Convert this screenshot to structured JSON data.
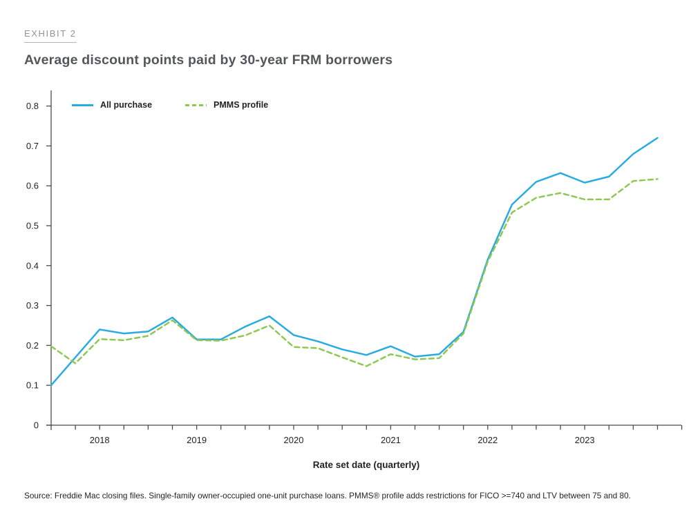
{
  "header": {
    "exhibit_label": "EXHIBIT 2",
    "title": "Average discount points paid by 30-year FRM borrowers"
  },
  "chart_data": {
    "type": "line",
    "title": "Average discount points paid by 30-year FRM borrowers",
    "xlabel": "Rate set date (quarterly)",
    "ylabel": "",
    "ylim": [
      0,
      0.8
    ],
    "y_ticks": [
      "0",
      "0.1",
      "0.2",
      "0.3",
      "0.4",
      "0.5",
      "0.6",
      "0.7",
      "0.8"
    ],
    "grid": false,
    "legend_position": "top-left",
    "x": [
      "2017 Q3",
      "2017 Q4",
      "2018 Q1",
      "2018 Q2",
      "2018 Q3",
      "2018 Q4",
      "2019 Q1",
      "2019 Q2",
      "2019 Q3",
      "2019 Q4",
      "2020 Q1",
      "2020 Q2",
      "2020 Q3",
      "2020 Q4",
      "2021 Q1",
      "2021 Q2",
      "2021 Q3",
      "2021 Q4",
      "2022 Q1",
      "2022 Q2",
      "2022 Q3",
      "2022 Q4",
      "2023 Q1",
      "2023 Q2",
      "2023 Q3",
      "2023 Q4"
    ],
    "x_year_labels": [
      {
        "label": "2018",
        "index": 2
      },
      {
        "label": "2019",
        "index": 6
      },
      {
        "label": "2020",
        "index": 10
      },
      {
        "label": "2021",
        "index": 14
      },
      {
        "label": "2022",
        "index": 18
      },
      {
        "label": "2023",
        "index": 22
      }
    ],
    "series": [
      {
        "name": "All purchase",
        "style": "solid",
        "color": "#29abe2",
        "values": [
          0.1,
          0.17,
          0.24,
          0.23,
          0.235,
          0.27,
          0.215,
          0.215,
          0.247,
          0.273,
          0.226,
          0.21,
          0.19,
          0.176,
          0.198,
          0.172,
          0.178,
          0.234,
          0.415,
          0.553,
          0.61,
          0.632,
          0.608,
          0.623,
          0.68,
          0.72
        ]
      },
      {
        "name": "PMMS profile",
        "style": "dashed",
        "color": "#8ec850",
        "values": [
          0.198,
          0.155,
          0.216,
          0.213,
          0.224,
          0.263,
          0.213,
          0.212,
          0.225,
          0.25,
          0.196,
          0.193,
          0.17,
          0.148,
          0.178,
          0.165,
          0.168,
          0.23,
          0.41,
          0.533,
          0.57,
          0.582,
          0.566,
          0.566,
          0.612,
          0.617
        ]
      }
    ]
  },
  "footer": {
    "source": "Source: Freddie Mac closing files. Single-family owner-occupied one-unit purchase loans. PMMS® profile adds restrictions for FICO >=740 and LTV between 75 and 80."
  },
  "colors": {
    "accent_blue": "#29abe2",
    "accent_green": "#8ec850",
    "axis": "#4a4a4a",
    "tick_text": "#231f20",
    "title_text": "#55565a",
    "exhibit_text": "#909396"
  }
}
